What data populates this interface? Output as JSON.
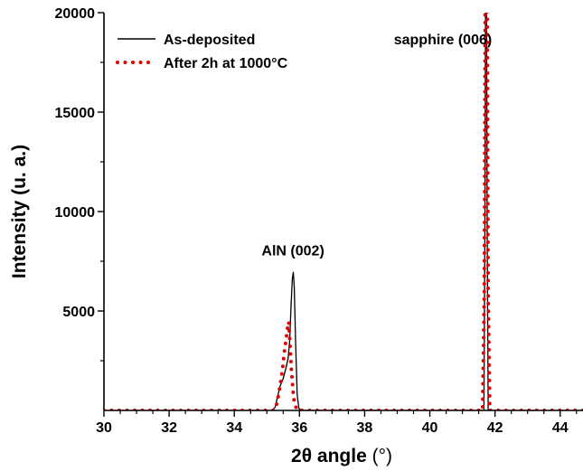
{
  "chart_data": {
    "type": "line",
    "title": "",
    "xlabel_bold": "2θ angle",
    "xlabel_unit": " (°)",
    "ylabel": "Intensity (u. a.)",
    "xlim": [
      30,
      44.7
    ],
    "ylim": [
      0,
      20000
    ],
    "xticks": [
      30,
      32,
      34,
      36,
      38,
      40,
      42,
      44
    ],
    "yticks": [
      5000,
      10000,
      15000,
      20000
    ],
    "x_minor_step": 0.5,
    "y_minor_step": 2500,
    "grid": false,
    "legend_position": "top-left",
    "series": [
      {
        "name": "As-deposited",
        "color": "#000000",
        "style": "solid",
        "points": [
          [
            30,
            0
          ],
          [
            35.15,
            0
          ],
          [
            35.25,
            150
          ],
          [
            35.33,
            700
          ],
          [
            35.4,
            1200
          ],
          [
            35.5,
            1600
          ],
          [
            35.58,
            2100
          ],
          [
            35.65,
            2600
          ],
          [
            35.7,
            3500
          ],
          [
            35.74,
            5200
          ],
          [
            35.78,
            6600
          ],
          [
            35.81,
            6950
          ],
          [
            35.84,
            6200
          ],
          [
            35.88,
            3500
          ],
          [
            35.93,
            800
          ],
          [
            35.98,
            100
          ],
          [
            36.05,
            0
          ],
          [
            41.6,
            0
          ],
          [
            41.66,
            0
          ],
          [
            41.69,
            9000
          ],
          [
            41.71,
            20500
          ],
          [
            41.74,
            20500
          ],
          [
            41.76,
            9000
          ],
          [
            41.79,
            0
          ],
          [
            44.7,
            0
          ]
        ]
      },
      {
        "name": "After 2h at 1000°C",
        "color": "#e00000",
        "style": "dotted",
        "points": [
          [
            30,
            0
          ],
          [
            35.2,
            0
          ],
          [
            35.28,
            150
          ],
          [
            35.35,
            700
          ],
          [
            35.42,
            1400
          ],
          [
            35.48,
            2100
          ],
          [
            35.54,
            3000
          ],
          [
            35.6,
            3700
          ],
          [
            35.64,
            4250
          ],
          [
            35.67,
            4450
          ],
          [
            35.7,
            3600
          ],
          [
            35.75,
            2100
          ],
          [
            35.82,
            600
          ],
          [
            35.9,
            100
          ],
          [
            35.96,
            0
          ],
          [
            41.62,
            0
          ],
          [
            41.67,
            6000
          ],
          [
            41.7,
            20500
          ],
          [
            41.76,
            20500
          ],
          [
            41.79,
            6000
          ],
          [
            41.84,
            0
          ],
          [
            44.7,
            0
          ]
        ]
      }
    ],
    "annotations": [
      {
        "text": "AlN (002)",
        "x": 35.8,
        "y": 7800
      },
      {
        "text": "sapphire (006)",
        "x": 40.4,
        "y": 18400
      }
    ]
  }
}
